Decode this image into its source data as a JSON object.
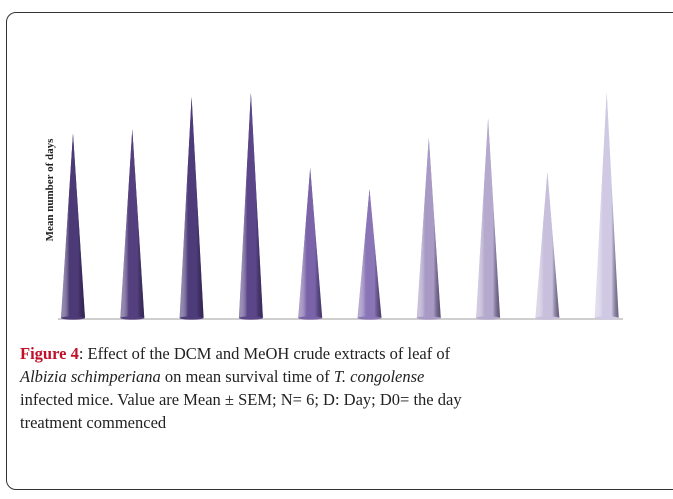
{
  "chart_data": {
    "type": "bar",
    "bar_shape": "cone",
    "title": "",
    "xlabel": "",
    "ylabel": "Mean number of days",
    "categories": [
      "",
      "",
      "",
      "",
      "",
      "",
      "",
      "",
      "",
      ""
    ],
    "values": [
      8.6,
      8.8,
      10.3,
      10.5,
      7.0,
      6.0,
      8.4,
      9.3,
      6.8,
      10.5
    ],
    "ylim": [
      0,
      11
    ],
    "grid": false,
    "colors": [
      "#4b3a75",
      "#54407f",
      "#4e3c7a",
      "#5a4688",
      "#7a63a8",
      "#8a76b6",
      "#a89ac4",
      "#b5aacd",
      "#c7bfdc",
      "#cfc9e3"
    ]
  },
  "caption": {
    "label": "Figure 4",
    "part1": ": Effect of the DCM and MeOH crude extracts of leaf of",
    "species": "Albizia schimperiana",
    "part2": " on mean survival time of ",
    "organism": "T. congolense",
    "part3": "infected mice. Value are Mean ± SEM; N= 6; D: Day; D0= the day",
    "part4": "treatment commenced"
  }
}
